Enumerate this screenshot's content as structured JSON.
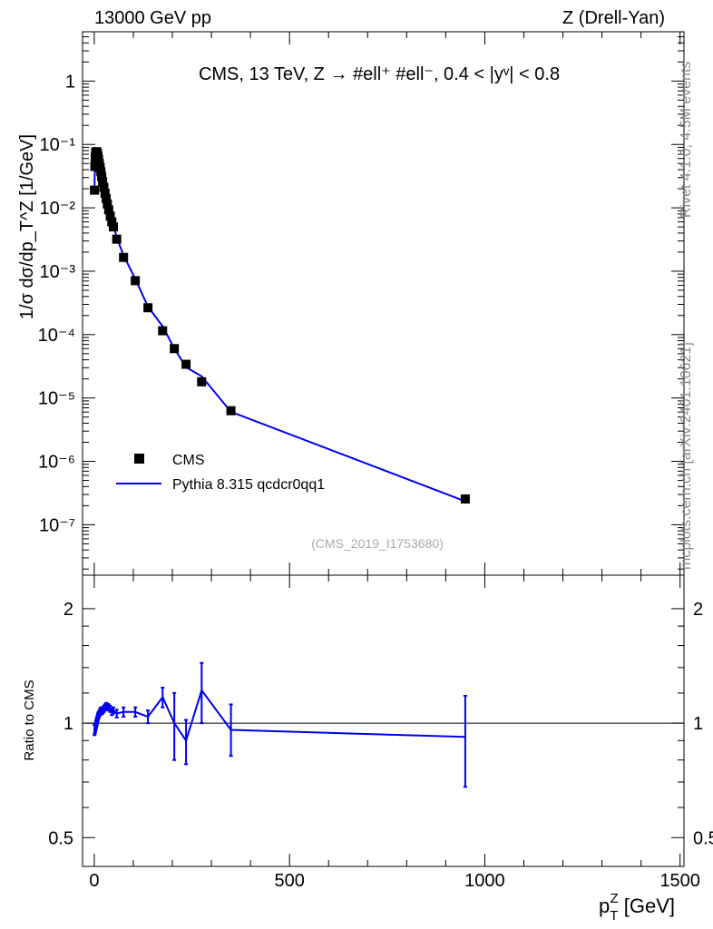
{
  "header": {
    "left": "13000 GeV pp",
    "right": "Z (Drell-Yan)"
  },
  "side_text": {
    "rivet": "Rivet 4.1.0,  4.5M events",
    "mcplots": "mcplots.cern.ch [arXiv:2401.10621]"
  },
  "chart_data": [
    {
      "type": "scatter",
      "panel": "main",
      "title": "CMS, 13 TeV, Z →  #ell⁺ #ell⁻, 0.4 < |yᵛ| < 0.8",
      "analysis_id": "(CMS_2019_I1753680)",
      "xlabel": "p_T^Z [GeV]",
      "ylabel": "1/σ dσ/dp_T^Z [1/GeV]",
      "yscale": "log",
      "xlim": [
        -30,
        1510
      ],
      "ylim": [
        1.6e-08,
        6
      ],
      "x_ticks": [
        0,
        500,
        1000,
        1500
      ],
      "x_tick_labels": [
        "0",
        "500",
        "1000",
        "1500"
      ],
      "y_ticks": [
        1e-07,
        1e-06,
        1e-05,
        0.0001,
        0.001,
        0.01,
        0.1,
        1
      ],
      "y_tick_labels": [
        "10⁻⁷",
        "10⁻⁶",
        "10⁻⁵",
        "10⁻⁴",
        "10⁻³",
        "10⁻²",
        "10⁻¹",
        "1"
      ],
      "legend": [
        {
          "label": "CMS",
          "style": "marker",
          "color": "#000000"
        },
        {
          "label": "Pythia 8.315 qcdcr0qq1",
          "style": "line",
          "color": "#0000ee"
        }
      ],
      "legend_position": "bottom-left",
      "series": [
        {
          "name": "CMS",
          "color": "#000000",
          "x": [
            0.5,
            1.5,
            2.5,
            3.5,
            4.5,
            5.5,
            6.5,
            7.5,
            8.5,
            9.5,
            11,
            13,
            15,
            17,
            19,
            21.5,
            24.5,
            27.5,
            30.5,
            33.5,
            37,
            41,
            45,
            49,
            57.5,
            75,
            105,
            137.5,
            175,
            205,
            235,
            275,
            350,
            950
          ],
          "y": [
            0.019,
            0.045,
            0.062,
            0.072,
            0.076,
            0.077,
            0.076,
            0.073,
            0.069,
            0.065,
            0.058,
            0.05,
            0.043,
            0.037,
            0.031,
            0.026,
            0.021,
            0.017,
            0.014,
            0.0115,
            0.0093,
            0.0074,
            0.006,
            0.005,
            0.0032,
            0.00165,
            0.00071,
            0.000265,
            0.000115,
            6e-05,
            3.4e-05,
            1.8e-05,
            6.3e-06,
            2.55e-07
          ]
        },
        {
          "name": "Pythia 8.315 qcdcr0qq1",
          "color": "#0000ee",
          "x": [
            0.5,
            1.5,
            2.5,
            3.5,
            4.5,
            5.5,
            6.5,
            7.5,
            8.5,
            9.5,
            11,
            13,
            15,
            17,
            19,
            21.5,
            24.5,
            27.5,
            30.5,
            33.5,
            37,
            41,
            45,
            49,
            57.5,
            75,
            105,
            137.5,
            175,
            205,
            235,
            275,
            350,
            950
          ],
          "y": [
            0.0182,
            0.0434,
            0.0602,
            0.0705,
            0.0752,
            0.077,
            0.0768,
            0.0744,
            0.071,
            0.0676,
            0.0609,
            0.053,
            0.046,
            0.0399,
            0.0333,
            0.0281,
            0.0229,
            0.0187,
            0.0155,
            0.0127,
            0.0102,
            0.0081,
            0.0064,
            0.0054,
            0.0034,
            0.00177,
            0.00076,
            0.000276,
            0.000135,
            6e-05,
            3.06e-05,
            2.2e-05,
            6.05e-06,
            2.35e-07
          ]
        }
      ]
    },
    {
      "type": "line",
      "panel": "ratio",
      "ylabel": "Ratio to CMS",
      "xlim": [
        -30,
        1510
      ],
      "ylim": [
        0.42,
        2.45
      ],
      "yscale": "log",
      "y_ticks": [
        0.5,
        1,
        2
      ],
      "y_tick_labels": [
        "0.5",
        "1",
        "2"
      ],
      "reference_line": 1,
      "series": [
        {
          "name": "Pythia 8.315 qcdcr0qq1 / CMS",
          "color": "#0000ee",
          "x": [
            0.5,
            1.5,
            2.5,
            3.5,
            4.5,
            5.5,
            6.5,
            7.5,
            8.5,
            9.5,
            11,
            13,
            15,
            17,
            19,
            21.5,
            24.5,
            27.5,
            30.5,
            33.5,
            37,
            41,
            45,
            49,
            57.5,
            75,
            105,
            137.5,
            175,
            205,
            235,
            275,
            350,
            950
          ],
          "y": [
            0.96,
            0.965,
            0.97,
            0.98,
            0.99,
            1.0,
            1.01,
            1.02,
            1.03,
            1.04,
            1.05,
            1.06,
            1.07,
            1.08,
            1.075,
            1.08,
            1.09,
            1.1,
            1.11,
            1.105,
            1.1,
            1.09,
            1.07,
            1.08,
            1.06,
            1.07,
            1.07,
            1.04,
            1.17,
            1.0,
            0.9,
            1.22,
            0.96,
            0.92
          ],
          "err_low": [
            0.03,
            0.025,
            0.02,
            0.02,
            0.02,
            0.02,
            0.02,
            0.02,
            0.02,
            0.02,
            0.02,
            0.02,
            0.02,
            0.02,
            0.02,
            0.02,
            0.02,
            0.02,
            0.02,
            0.02,
            0.02,
            0.02,
            0.02,
            0.02,
            0.025,
            0.03,
            0.03,
            0.04,
            0.07,
            0.2,
            0.12,
            0.22,
            0.14,
            0.24
          ],
          "err_high": [
            0.03,
            0.025,
            0.02,
            0.02,
            0.02,
            0.02,
            0.02,
            0.02,
            0.02,
            0.02,
            0.02,
            0.02,
            0.02,
            0.02,
            0.02,
            0.02,
            0.02,
            0.02,
            0.02,
            0.02,
            0.02,
            0.02,
            0.02,
            0.02,
            0.025,
            0.03,
            0.03,
            0.04,
            0.07,
            0.2,
            0.12,
            0.22,
            0.16,
            0.26
          ]
        }
      ]
    }
  ]
}
